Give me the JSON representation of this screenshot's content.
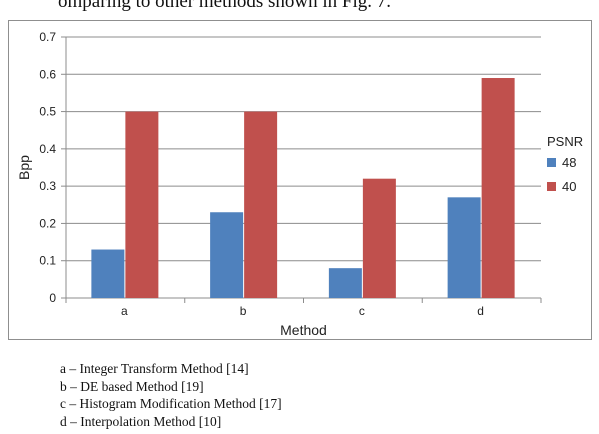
{
  "header_text": "omparing to other methods shown in Fig. 7.",
  "chart_data": {
    "type": "bar",
    "categories": [
      "a",
      "b",
      "c",
      "d"
    ],
    "series": [
      {
        "name": "48",
        "values": [
          0.13,
          0.23,
          0.08,
          0.27
        ],
        "color": "#4f81bd"
      },
      {
        "name": "40",
        "values": [
          0.5,
          0.5,
          0.32,
          0.59
        ],
        "color": "#c0504d"
      }
    ],
    "title": "",
    "xlabel": "Method",
    "ylabel": "Bpp",
    "ylim": [
      0,
      0.7
    ],
    "yticks": [
      "0",
      "0.1",
      "0.2",
      "0.3",
      "0.4",
      "0.5",
      "0.6",
      "0.7"
    ],
    "legend_title": "PSNR",
    "legend_position": "right",
    "grid": true
  },
  "method_legend": [
    "a – Integer Transform Method [14]",
    "b – DE based Method [19]",
    "c – Histogram Modification Method [17]",
    "d – Interpolation Method [10]"
  ]
}
